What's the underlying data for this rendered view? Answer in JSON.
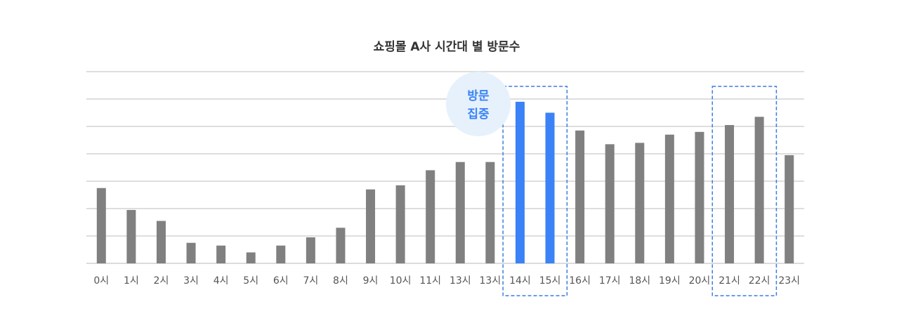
{
  "chart_data": {
    "type": "bar",
    "title": "쇼핑몰 A사 시간대 별 방문수",
    "categories": [
      "0시",
      "1시",
      "2시",
      "3시",
      "4시",
      "5시",
      "6시",
      "7시",
      "8시",
      "9시",
      "10시",
      "11시",
      "13시",
      "13시",
      "14시",
      "15시",
      "16시",
      "17시",
      "18시",
      "19시",
      "20시",
      "21시",
      "22시",
      "23시"
    ],
    "values": [
      55,
      39,
      31,
      15,
      13,
      8,
      13,
      19,
      26,
      54,
      57,
      68,
      74,
      74,
      118,
      110,
      97,
      87,
      88,
      94,
      96,
      101,
      107,
      79
    ],
    "ylim": [
      0,
      140
    ],
    "grid": true,
    "y_tick_labels_shown": false,
    "highlighted_categories": [
      14,
      15
    ],
    "boxed_groups": [
      [
        14,
        15
      ],
      [
        21,
        22
      ]
    ],
    "colors": {
      "default_bar": "#808080",
      "highlight_bar": "#3b82f6",
      "box_outline": "#3b7ddd",
      "callout_fill": "#e6f1fc",
      "callout_text": "#3b82f6"
    },
    "annotation": {
      "line1": "방문",
      "line2": "집중"
    }
  }
}
